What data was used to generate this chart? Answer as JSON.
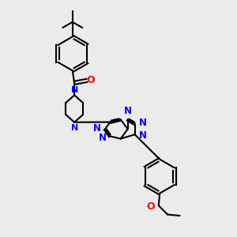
{
  "bg_color": "#ebebeb",
  "bond_color": "#000000",
  "nitrogen_color": "#0000ff",
  "oxygen_color": "#ff0000",
  "lw": 1.5,
  "figsize": [
    3.0,
    3.0
  ],
  "dpi": 100,
  "xlim": [
    0,
    10
  ],
  "ylim": [
    0,
    10
  ]
}
